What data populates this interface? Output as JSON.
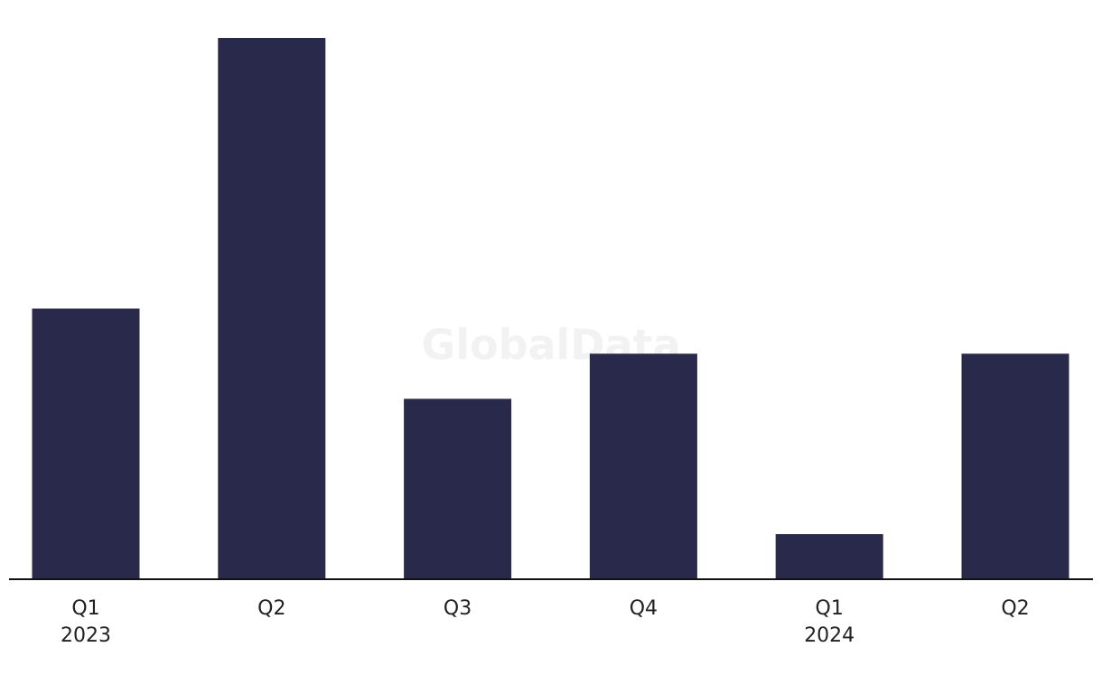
{
  "chart_data": {
    "type": "bar",
    "watermark": "GlobalData",
    "categories": [
      [
        "Q1",
        "2023"
      ],
      [
        "Q2"
      ],
      [
        "Q3"
      ],
      [
        "Q4"
      ],
      [
        "Q1",
        "2024"
      ],
      [
        "Q2"
      ]
    ],
    "values": [
      6,
      12,
      4,
      5,
      1,
      5
    ],
    "color": "#29294b",
    "ylim": [
      0,
      12
    ]
  }
}
